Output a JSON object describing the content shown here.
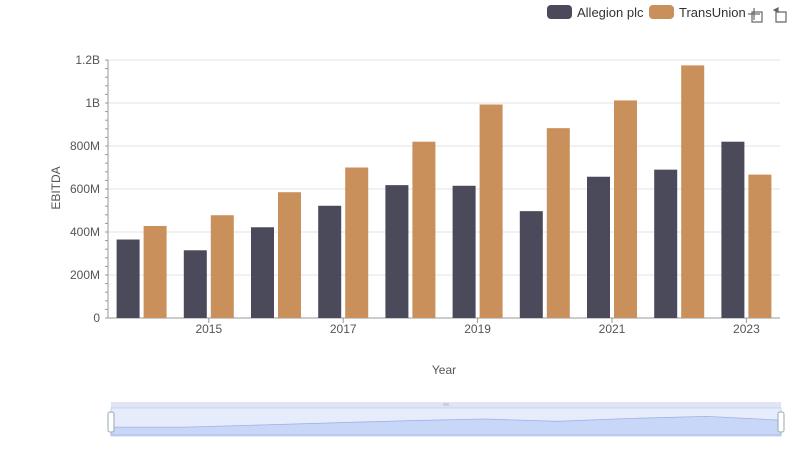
{
  "chart_data": {
    "type": "bar",
    "title": "",
    "xlabel": "Year",
    "ylabel": "EBITDA",
    "categories": [
      "2014",
      "2015",
      "2016",
      "2017",
      "2018",
      "2019",
      "2020",
      "2021",
      "2022",
      "2023"
    ],
    "x_tick_labels": [
      "2015",
      "2017",
      "2019",
      "2021",
      "2023"
    ],
    "y_tick_labels": [
      "0",
      "200M",
      "400M",
      "600M",
      "800M",
      "1B",
      "1.2B"
    ],
    "ylim": [
      0,
      1200000000
    ],
    "grid": true,
    "legend_position": "top-right",
    "series": [
      {
        "name": "Allegion plc",
        "color": "#4a4a5a",
        "values": [
          365000000,
          315000000,
          422000000,
          522000000,
          618000000,
          615000000,
          497000000,
          657000000,
          690000000,
          820000000
        ]
      },
      {
        "name": "TransUnion",
        "color": "#c9905c",
        "values": [
          428000000,
          478000000,
          585000000,
          700000000,
          820000000,
          993000000,
          883000000,
          1012000000,
          1175000000,
          667000000
        ]
      }
    ]
  },
  "toolbar": {
    "zoom_icon": "zoom-icon",
    "reset_icon": "reset-icon"
  }
}
